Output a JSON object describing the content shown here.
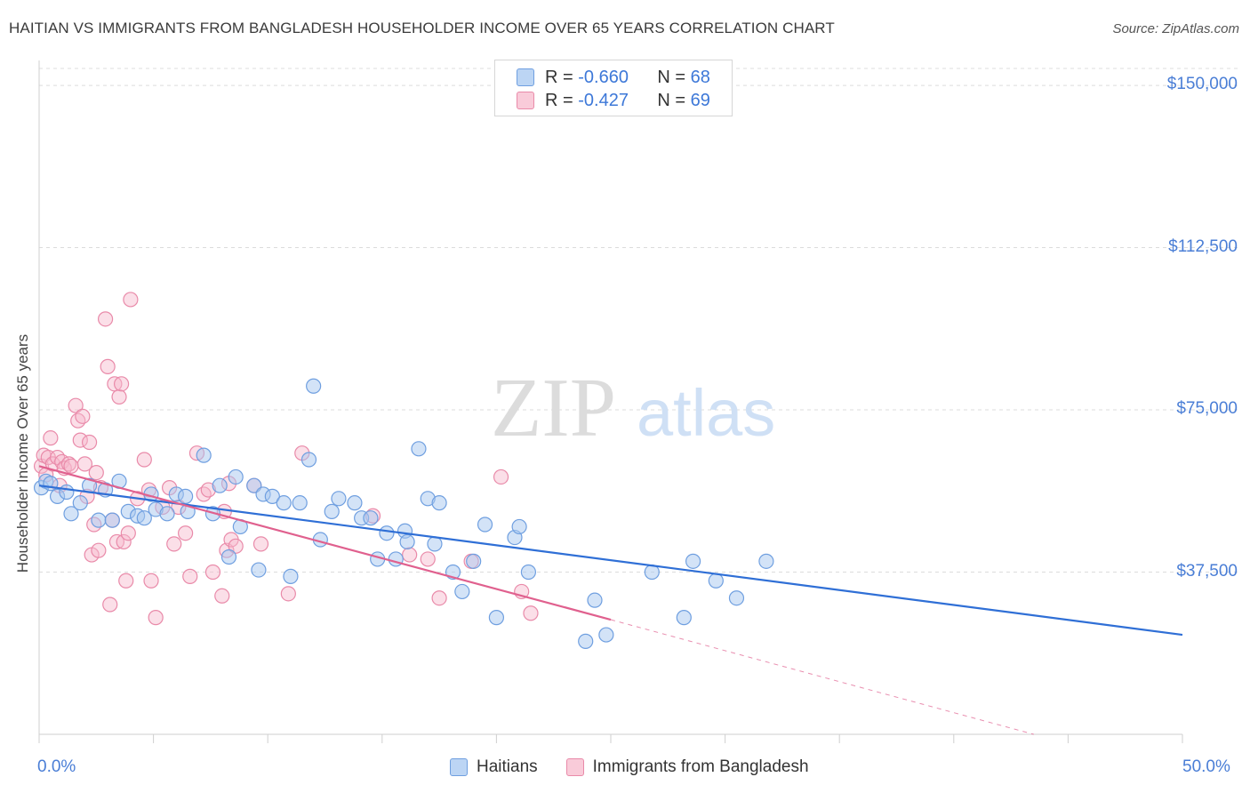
{
  "header": {
    "title": "HAITIAN VS IMMIGRANTS FROM BANGLADESH HOUSEHOLDER INCOME OVER 65 YEARS CORRELATION CHART",
    "source": "Source: ZipAtlas.com"
  },
  "watermark": {
    "zip": "ZIP",
    "atlas": "atlas"
  },
  "legend": {
    "r_label": "R =",
    "n_label": "N =",
    "series": [
      {
        "r": "-0.660",
        "n": "68"
      },
      {
        "r": "-0.427",
        "n": "69"
      }
    ]
  },
  "colors": {
    "blue_fill": "#a8c8f0",
    "blue_stroke": "#6f9fe0",
    "blue_line": "#2f6fd6",
    "pink_fill": "#f6b8cb",
    "pink_stroke": "#e98aa9",
    "pink_line": "#e0608e",
    "tick_text": "#4a7ed6"
  },
  "chart_data": {
    "type": "scatter",
    "title": "HAITIAN VS IMMIGRANTS FROM BANGLADESH HOUSEHOLDER INCOME OVER 65 YEARS CORRELATION CHART",
    "ylabel": "Householder Income Over 65 years",
    "xlabel": "",
    "xlim": [
      0,
      50
    ],
    "ylim": [
      0,
      157000
    ],
    "x_tick_labels": [
      "0.0%",
      "50.0%"
    ],
    "y_ticks": [
      37500,
      75000,
      112500,
      150000
    ],
    "y_tick_labels": [
      "$37,500",
      "$75,000",
      "$112,500",
      "$150,000"
    ],
    "grid": true,
    "legend_position": "bottom",
    "series": [
      {
        "name": "Haitians",
        "trend": {
          "x": [
            0,
            50
          ],
          "y": [
            57500,
            23000
          ]
        },
        "points": [
          [
            0.1,
            57000
          ],
          [
            0.3,
            58500
          ],
          [
            0.5,
            58000
          ],
          [
            0.8,
            55000
          ],
          [
            1.2,
            56000
          ],
          [
            1.4,
            51000
          ],
          [
            1.8,
            53500
          ],
          [
            2.2,
            57500
          ],
          [
            2.6,
            49500
          ],
          [
            2.9,
            56500
          ],
          [
            3.2,
            49500
          ],
          [
            3.5,
            58500
          ],
          [
            3.9,
            51500
          ],
          [
            4.3,
            50500
          ],
          [
            4.6,
            50000
          ],
          [
            4.9,
            55500
          ],
          [
            5.1,
            52000
          ],
          [
            5.6,
            51000
          ],
          [
            6.0,
            55500
          ],
          [
            6.4,
            55000
          ],
          [
            6.5,
            51500
          ],
          [
            7.2,
            64500
          ],
          [
            7.6,
            51000
          ],
          [
            7.9,
            57500
          ],
          [
            8.3,
            41000
          ],
          [
            8.6,
            59500
          ],
          [
            8.8,
            48000
          ],
          [
            9.4,
            57500
          ],
          [
            9.6,
            38000
          ],
          [
            9.8,
            55500
          ],
          [
            10.2,
            55000
          ],
          [
            10.7,
            53500
          ],
          [
            11.0,
            36500
          ],
          [
            11.4,
            53500
          ],
          [
            11.8,
            63500
          ],
          [
            12.0,
            80500
          ],
          [
            12.3,
            45000
          ],
          [
            12.8,
            51500
          ],
          [
            13.1,
            54500
          ],
          [
            13.8,
            53500
          ],
          [
            14.1,
            50000
          ],
          [
            14.5,
            50000
          ],
          [
            14.8,
            40500
          ],
          [
            15.2,
            46500
          ],
          [
            15.6,
            40500
          ],
          [
            16.0,
            47000
          ],
          [
            16.1,
            44500
          ],
          [
            16.6,
            66000
          ],
          [
            17.0,
            54500
          ],
          [
            17.3,
            44000
          ],
          [
            17.5,
            53500
          ],
          [
            18.1,
            37500
          ],
          [
            18.5,
            33000
          ],
          [
            19.0,
            40000
          ],
          [
            19.5,
            48500
          ],
          [
            20.0,
            27000
          ],
          [
            20.8,
            45500
          ],
          [
            21.0,
            48000
          ],
          [
            21.4,
            37500
          ],
          [
            23.9,
            21500
          ],
          [
            24.3,
            31000
          ],
          [
            24.8,
            23000
          ],
          [
            26.8,
            37500
          ],
          [
            28.2,
            27000
          ],
          [
            28.6,
            40000
          ],
          [
            29.6,
            35500
          ],
          [
            30.5,
            31500
          ],
          [
            31.8,
            40000
          ]
        ]
      },
      {
        "name": "Immigrants from Bangladesh",
        "trend": {
          "x": [
            0,
            25
          ],
          "y": [
            62000,
            26500
          ]
        },
        "trend_extended": {
          "x": [
            25,
            43.5
          ],
          "y": [
            26500,
            0
          ]
        },
        "points": [
          [
            0.1,
            62000
          ],
          [
            0.2,
            64500
          ],
          [
            0.3,
            60000
          ],
          [
            0.4,
            64000
          ],
          [
            0.5,
            68500
          ],
          [
            0.6,
            62500
          ],
          [
            0.8,
            64000
          ],
          [
            0.9,
            57500
          ],
          [
            1.0,
            63000
          ],
          [
            1.1,
            61500
          ],
          [
            1.3,
            62500
          ],
          [
            1.4,
            62000
          ],
          [
            1.6,
            76000
          ],
          [
            1.7,
            72500
          ],
          [
            1.8,
            68000
          ],
          [
            1.9,
            73500
          ],
          [
            2.0,
            62500
          ],
          [
            2.1,
            55000
          ],
          [
            2.2,
            67500
          ],
          [
            2.3,
            41500
          ],
          [
            2.4,
            48500
          ],
          [
            2.5,
            60500
          ],
          [
            2.6,
            42500
          ],
          [
            2.7,
            57000
          ],
          [
            2.9,
            96000
          ],
          [
            3.0,
            85000
          ],
          [
            3.1,
            30000
          ],
          [
            3.2,
            49500
          ],
          [
            3.3,
            81000
          ],
          [
            3.4,
            44500
          ],
          [
            3.5,
            78000
          ],
          [
            3.6,
            81000
          ],
          [
            3.7,
            44500
          ],
          [
            3.8,
            35500
          ],
          [
            3.9,
            46500
          ],
          [
            4.0,
            100500
          ],
          [
            4.3,
            54500
          ],
          [
            4.6,
            63500
          ],
          [
            4.8,
            56500
          ],
          [
            4.9,
            35500
          ],
          [
            5.1,
            27000
          ],
          [
            5.4,
            52500
          ],
          [
            5.7,
            57000
          ],
          [
            5.9,
            44000
          ],
          [
            6.1,
            52500
          ],
          [
            6.4,
            46500
          ],
          [
            6.6,
            36500
          ],
          [
            6.9,
            65000
          ],
          [
            7.2,
            55500
          ],
          [
            7.4,
            56500
          ],
          [
            7.6,
            37500
          ],
          [
            8.0,
            32000
          ],
          [
            8.1,
            51500
          ],
          [
            8.2,
            42500
          ],
          [
            8.3,
            58000
          ],
          [
            8.4,
            45000
          ],
          [
            8.6,
            43500
          ],
          [
            9.4,
            57500
          ],
          [
            9.7,
            44000
          ],
          [
            10.9,
            32500
          ],
          [
            11.5,
            65000
          ],
          [
            14.6,
            50500
          ],
          [
            16.2,
            41500
          ],
          [
            17.0,
            40500
          ],
          [
            17.5,
            31500
          ],
          [
            18.9,
            40000
          ],
          [
            20.2,
            59500
          ],
          [
            21.1,
            33000
          ],
          [
            21.5,
            28000
          ]
        ]
      }
    ]
  }
}
